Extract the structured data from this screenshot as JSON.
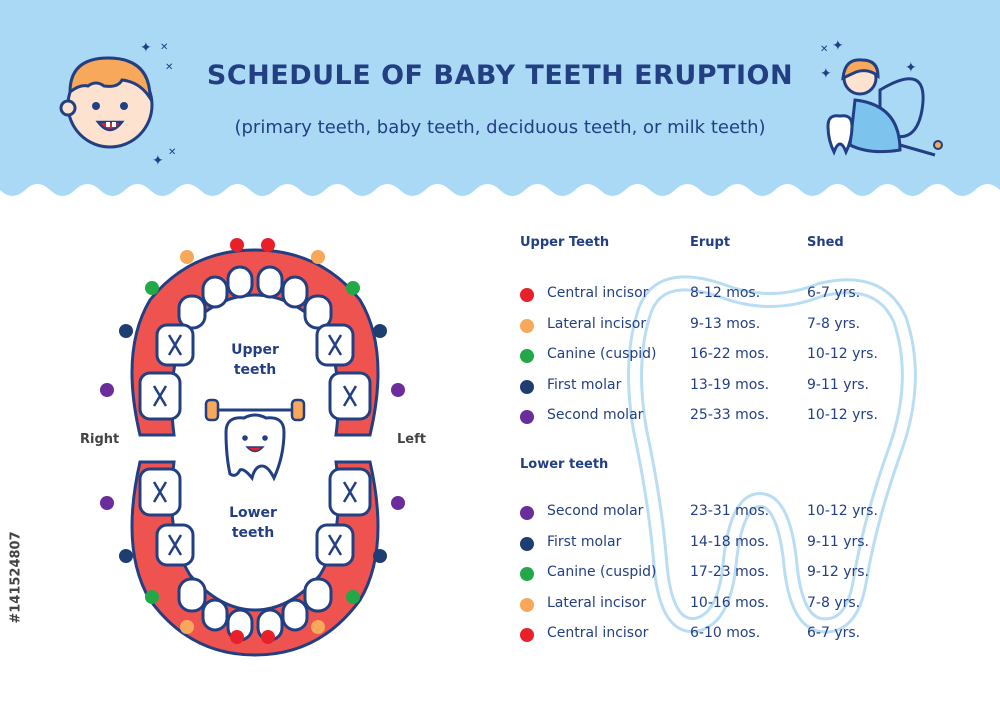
{
  "header": {
    "title": "SCHEDULE OF BABY TEETH ERUPTION",
    "subtitle": "(primary teeth, baby teeth, deciduous teeth, or milk teeth)",
    "band_color": "#a9d9f5"
  },
  "diagram": {
    "right_label": "Right",
    "left_label": "Left",
    "upper_label_line1": "Upper",
    "upper_label_line2": "teeth",
    "lower_label_line1": "Lower",
    "lower_label_line2": "teeth",
    "gum_color": "#ef5350"
  },
  "table": {
    "upper_heading": "Upper Teeth",
    "erupt_heading": "Erupt",
    "shed_heading": "Shed",
    "lower_heading": "Lower teeth",
    "upper_rows": [
      {
        "color": "#e8202a",
        "name": "Central incisor",
        "erupt": "8-12 mos.",
        "shed": "6-7 yrs."
      },
      {
        "color": "#f7a85b",
        "name": "Lateral incisor",
        "erupt": "9-13 mos.",
        "shed": "7-8 yrs."
      },
      {
        "color": "#22a846",
        "name": "Canine (cuspid)",
        "erupt": "16-22 mos.",
        "shed": "10-12 yrs."
      },
      {
        "color": "#1e3e72",
        "name": "First molar",
        "erupt": "13-19 mos.",
        "shed": "9-11 yrs."
      },
      {
        "color": "#6a2d9b",
        "name": "Second molar",
        "erupt": "25-33 mos.",
        "shed": "10-12 yrs."
      }
    ],
    "lower_rows": [
      {
        "color": "#6a2d9b",
        "name": "Second molar",
        "erupt": "23-31 mos.",
        "shed": "10-12 yrs."
      },
      {
        "color": "#1e3e72",
        "name": "First molar",
        "erupt": "14-18 mos.",
        "shed": "9-11 yrs."
      },
      {
        "color": "#22a846",
        "name": "Canine (cuspid)",
        "erupt": "17-23 mos.",
        "shed": "9-12 yrs."
      },
      {
        "color": "#f7a85b",
        "name": "Lateral incisor",
        "erupt": "10-16 mos.",
        "shed": "7-8 yrs."
      },
      {
        "color": "#e8202a",
        "name": "Central incisor",
        "erupt": "6-10 mos.",
        "shed": "6-7 yrs."
      }
    ]
  },
  "watermark": "#141524807"
}
